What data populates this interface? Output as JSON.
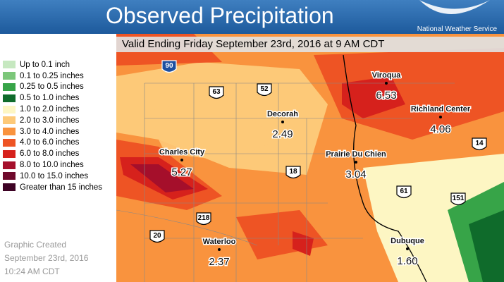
{
  "header": {
    "title": "Observed Precipitation",
    "agency": "National Weather Service"
  },
  "valid_line": "Valid Ending Friday September 23rd, 2016 at 9 AM CDT",
  "legend": [
    {
      "label": "Up to 0.1 inch",
      "color": "#c6e8c0"
    },
    {
      "label": "0.1 to 0.25 inches",
      "color": "#7cc77a"
    },
    {
      "label": "0.25 to 0.5 inches",
      "color": "#37a448"
    },
    {
      "label": "0.5 to 1.0 inches",
      "color": "#0f6b2b"
    },
    {
      "label": "1.0 to 2.0 inches",
      "color": "#fdf6c3"
    },
    {
      "label": "2.0 to 3.0 inches",
      "color": "#fdc978"
    },
    {
      "label": "3.0 to 4.0 inches",
      "color": "#f9933e"
    },
    {
      "label": "4.0 to 6.0 inches",
      "color": "#ee5424"
    },
    {
      "label": "6.0 to 8.0 inches",
      "color": "#d6211c"
    },
    {
      "label": "8.0 to 10.0 inches",
      "color": "#a50f2b"
    },
    {
      "label": "10.0 to 15.0 inches",
      "color": "#6f0a2c"
    },
    {
      "label": "Greater than 15 inches",
      "color": "#3d0224"
    }
  ],
  "created": [
    "Graphic Created",
    "September 23rd, 2016",
    "10:24 AM CDT"
  ],
  "cities": [
    {
      "name": "Viroqua",
      "value": "6.53"
    },
    {
      "name": "Richland Center",
      "value": "4.06"
    },
    {
      "name": "Decorah",
      "value": "2.49"
    },
    {
      "name": "Prairie Du Chien",
      "value": "3.04"
    },
    {
      "name": "Charles City",
      "value": "5.27"
    },
    {
      "name": "Waterloo",
      "value": "2.37"
    },
    {
      "name": "Dubuque",
      "value": "1.60"
    }
  ],
  "highways": [
    "90",
    "63",
    "52",
    "18",
    "61",
    "151",
    "14",
    "218",
    "20"
  ]
}
